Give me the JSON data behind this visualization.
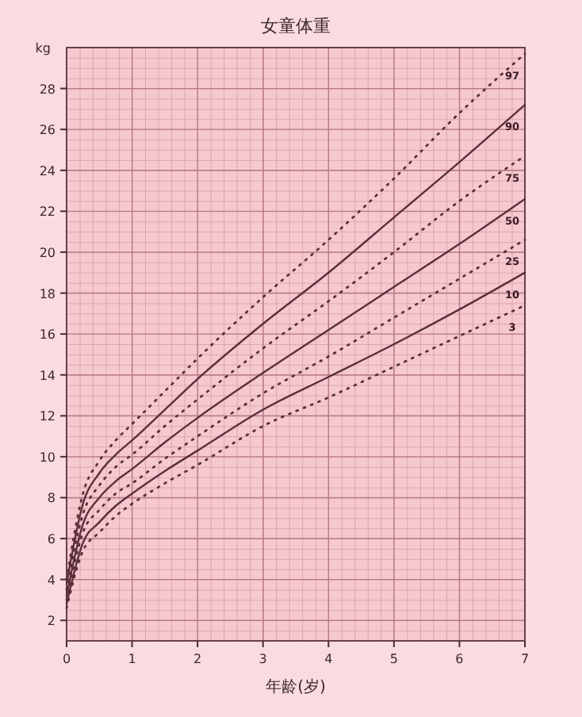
{
  "chart_data": {
    "type": "line",
    "title": "女童体重",
    "xlabel": "年龄(岁)",
    "ylabel": "kg",
    "x": [
      0,
      0.25,
      0.5,
      0.75,
      1,
      1.5,
      2,
      3,
      4,
      5,
      6,
      7
    ],
    "xlim": [
      0,
      7
    ],
    "xticks": [
      0,
      1,
      2,
      3,
      4,
      5,
      6,
      7
    ],
    "ylim": [
      1,
      30
    ],
    "yticks": [
      2,
      4,
      6,
      8,
      10,
      12,
      14,
      16,
      18,
      20,
      22,
      24,
      26,
      28
    ],
    "grid": true,
    "marker": "none",
    "series": [
      {
        "name": "97",
        "color": "#5a3038",
        "line_style": "dotted",
        "values": [
          4.0,
          8.2,
          9.8,
          10.8,
          11.6,
          13.2,
          14.8,
          17.8,
          20.6,
          23.6,
          26.8,
          29.7
        ]
      },
      {
        "name": "90",
        "color": "#5a3038",
        "line_style": "solid",
        "values": [
          3.8,
          7.7,
          9.2,
          10.1,
          10.8,
          12.3,
          13.8,
          16.5,
          19.0,
          21.7,
          24.4,
          27.2
        ]
      },
      {
        "name": "75",
        "color": "#5a3038",
        "line_style": "dotted",
        "values": [
          3.5,
          7.2,
          8.6,
          9.5,
          10.1,
          11.5,
          12.8,
          15.3,
          17.6,
          20.0,
          22.5,
          24.7
        ]
      },
      {
        "name": "50",
        "color": "#5a3038",
        "line_style": "solid",
        "values": [
          3.2,
          6.7,
          8.0,
          8.8,
          9.4,
          10.7,
          11.9,
          14.1,
          16.2,
          18.3,
          20.4,
          22.6
        ]
      },
      {
        "name": "25",
        "color": "#5a3038",
        "line_style": "dotted",
        "values": [
          3.0,
          6.3,
          7.4,
          8.2,
          8.7,
          9.9,
          11.0,
          13.1,
          14.9,
          16.8,
          18.7,
          20.6
        ]
      },
      {
        "name": "10",
        "color": "#5a3038",
        "line_style": "solid",
        "values": [
          2.8,
          5.8,
          6.8,
          7.6,
          8.2,
          9.3,
          10.3,
          12.3,
          13.9,
          15.5,
          17.2,
          19.0
        ]
      },
      {
        "name": "3",
        "color": "#5a3038",
        "line_style": "dotted",
        "values": [
          2.6,
          5.4,
          6.3,
          7.1,
          7.7,
          8.7,
          9.6,
          11.5,
          12.9,
          14.4,
          15.9,
          17.4
        ]
      }
    ]
  }
}
